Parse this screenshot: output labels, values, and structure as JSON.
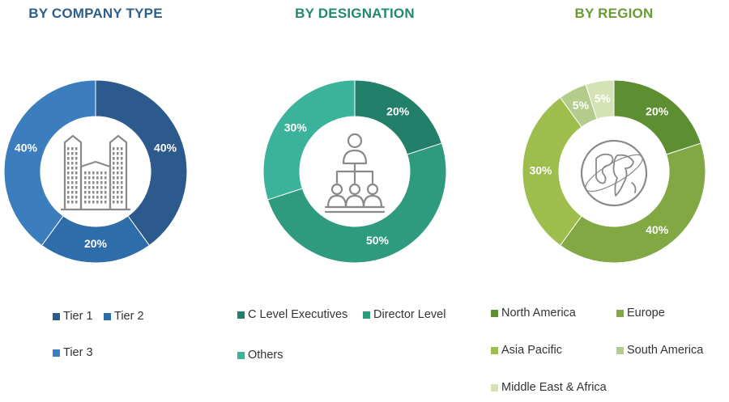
{
  "chart_data": [
    {
      "type": "pie",
      "title": "BY COMPANY TYPE",
      "title_color": "#2E5F8A",
      "categories": [
        "Tier 1",
        "Tier 2",
        "Tier 3"
      ],
      "values": [
        40,
        20,
        40
      ],
      "labels": [
        "40%",
        "20%",
        "40%"
      ],
      "colors": [
        "#2C5A8C",
        "#2F6CAA",
        "#3C7DBE"
      ],
      "center_icon": "office-buildings-icon",
      "legend_placement": "bottom"
    },
    {
      "type": "pie",
      "title": "BY DESIGNATION",
      "title_color": "#23896E",
      "categories": [
        "C Level Executives",
        "Director Level",
        "Others"
      ],
      "values": [
        20,
        50,
        30
      ],
      "labels": [
        "20%",
        "50%",
        "30%"
      ],
      "colors": [
        "#22806A",
        "#2E9A7E",
        "#3BB39A"
      ],
      "center_icon": "org-chart-people-icon",
      "legend_placement": "bottom"
    },
    {
      "type": "pie",
      "title": "BY REGION",
      "title_color": "#6A9A32",
      "categories": [
        "North America",
        "Europe",
        "Asia Pacific",
        "South America",
        "Middle East & Africa"
      ],
      "values": [
        20,
        40,
        30,
        5,
        5
      ],
      "labels": [
        "20%",
        "40%",
        "30%",
        "5%",
        "5%"
      ],
      "colors": [
        "#5E8E32",
        "#82A844",
        "#9DBE4C",
        "#B3CC8B",
        "#D5E2B6"
      ],
      "center_icon": "globe-icon",
      "legend_placement": "bottom"
    }
  ]
}
